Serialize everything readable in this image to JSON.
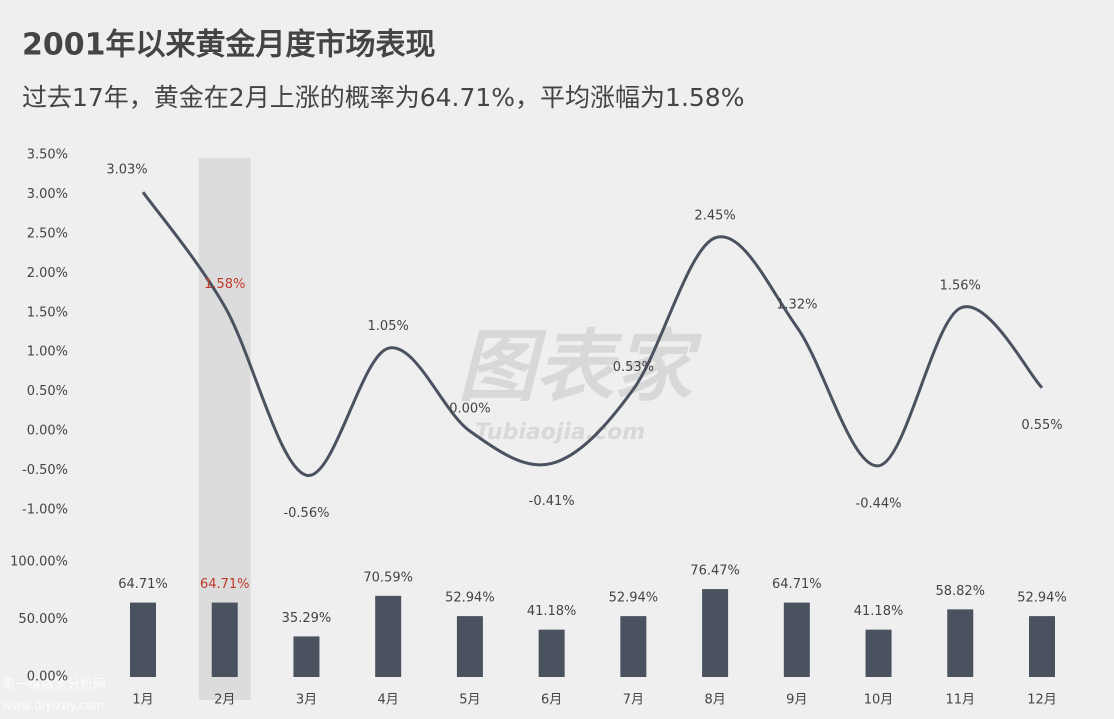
{
  "chart_data": [
    {
      "type": "line",
      "title": "2001年以来黄金月度市场表现",
      "subtitle": "过去17年，黄金在2月上涨的概率为64.71%，平均涨幅为1.58%",
      "values": [
        3.03,
        1.58,
        -0.56,
        1.05,
        0.0,
        -0.41,
        0.53,
        2.45,
        1.32,
        -0.44,
        1.56,
        0.55
      ],
      "value_labels": [
        "3.03%",
        "1.58%",
        "-0.56%",
        "1.05%",
        "0.00%",
        "-0.41%",
        "0.53%",
        "2.45%",
        "1.32%",
        "-0.44%",
        "1.56%",
        "0.55%"
      ],
      "color": "#4a5260",
      "smooth": true,
      "ylim": [
        -1,
        3.5
      ],
      "yticks": [
        {
          "value": -1,
          "label": "-1.00%"
        },
        {
          "value": -0.5,
          "label": "-0.50%"
        },
        {
          "value": 0,
          "label": "0.00%"
        },
        {
          "value": 0.5,
          "label": "0.50%"
        },
        {
          "value": 1,
          "label": "1.00%"
        },
        {
          "value": 1.5,
          "label": "1.50%"
        },
        {
          "value": 2,
          "label": "2.00%"
        },
        {
          "value": 2.5,
          "label": "2.50%"
        },
        {
          "value": 3,
          "label": "3.00%"
        },
        {
          "value": 3.5,
          "label": "3.50%"
        }
      ],
      "watermark": "图表家",
      "watermark_url": "Tubiaojia.com"
    },
    {
      "type": "bar",
      "categories": [
        "1月",
        "2月",
        "3月",
        "4月",
        "5月",
        "6月",
        "7月",
        "8月",
        "9月",
        "10月",
        "11月",
        "12月"
      ],
      "values": [
        64.71,
        64.71,
        35.29,
        70.59,
        52.94,
        41.18,
        52.94,
        76.47,
        64.71,
        41.18,
        58.82,
        52.94
      ],
      "value_labels": [
        "64.71%",
        "64.71%",
        "35.29%",
        "70.59%",
        "52.94%",
        "41.18%",
        "52.94%",
        "76.47%",
        "64.71%",
        "41.18%",
        "58.82%",
        "52.94%"
      ],
      "color": "#4a5260",
      "highlight_index": 1,
      "highlight_color": "#c0392b",
      "ylim": [
        0,
        100
      ],
      "yticks": [
        {
          "value": 0,
          "label": "0.00%"
        },
        {
          "value": 50,
          "label": "50.00%"
        },
        {
          "value": 100,
          "label": "100.00%"
        }
      ],
      "corner_watermark": "第一纵横家分析网",
      "corner_watermark_url": "www.diyizby.com"
    }
  ]
}
